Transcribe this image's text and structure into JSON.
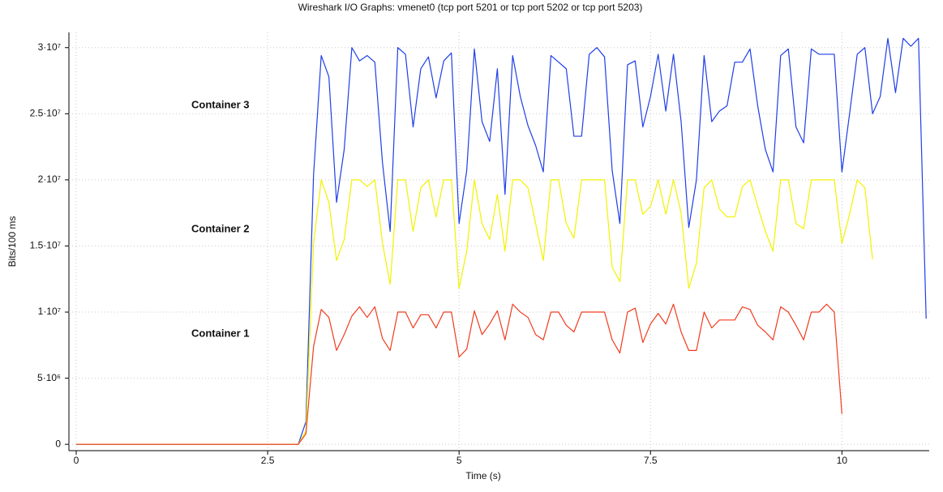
{
  "chart_data": {
    "type": "line",
    "title": "Wireshark I/O Graphs: vmenet0 (tcp port 5201 or tcp port 5202 or tcp port 5203)",
    "x_label": "Time (s)",
    "y_label": "Bits/100 ms",
    "xlim": [
      -0.095,
      11.14
    ],
    "ylim": [
      -480000,
      31150000
    ],
    "xticks": [
      0,
      2.5,
      5,
      7.5,
      10
    ],
    "yticks": [
      0,
      {
        "value": 5000000,
        "label": "5·10⁶"
      },
      {
        "value": 10000000,
        "label": "1·10⁷"
      },
      {
        "value": 15000000,
        "label": "1.5·10⁷"
      },
      {
        "value": 20000000,
        "label": "2·10⁷"
      },
      {
        "value": 25000000,
        "label": "2.5·10⁷"
      },
      {
        "value": 30000000,
        "label": "3·10⁷"
      }
    ],
    "grid": true,
    "x": [
      0,
      2.9,
      3.0,
      3.1,
      3.2,
      3.3,
      3.4,
      3.5,
      3.6,
      3.7,
      3.8,
      3.9,
      4.0,
      4.1,
      4.2,
      4.3,
      4.4,
      4.5,
      4.6,
      4.7,
      4.8,
      4.9,
      5.0,
      5.1,
      5.2,
      5.3,
      5.4,
      5.5,
      5.6,
      5.7,
      5.8,
      5.9,
      6.0,
      6.1,
      6.2,
      6.3,
      6.4,
      6.5,
      6.6,
      6.7,
      6.8,
      6.9,
      7.0,
      7.1,
      7.2,
      7.3,
      7.4,
      7.5,
      7.6,
      7.7,
      7.8,
      7.9,
      8.0,
      8.1,
      8.2,
      8.3,
      8.4,
      8.5,
      8.6,
      8.7,
      8.8,
      8.9,
      9.0,
      9.1,
      9.2,
      9.3,
      9.4,
      9.5,
      9.6,
      9.7,
      9.8,
      9.9,
      10.0,
      10.1,
      10.2,
      10.3,
      10.4,
      10.5,
      10.6,
      10.7,
      10.8,
      10.9,
      11.0,
      11.1
    ],
    "series": [
      {
        "name": "Container 3",
        "color": "#1f3fe6",
        "label_color": "#4a90e8",
        "values": [
          0,
          0,
          1700000.0,
          20400000.0,
          29400000.0,
          27800000.0,
          18300000.0,
          22300000.0,
          30000000.0,
          29000000.0,
          29400000.0,
          28900000.0,
          21300000.0,
          16100000.0,
          30000000.0,
          29500000.0,
          24000000.0,
          28400000.0,
          29300000.0,
          26200000.0,
          29000000.0,
          29600000.0,
          16700000.0,
          20700000.0,
          29900000.0,
          24400000.0,
          22900000.0,
          28400000.0,
          18900000.0,
          29400000.0,
          26300000.0,
          24100000.0,
          22600000.0,
          20600000.0,
          29400000.0,
          28900000.0,
          28400000.0,
          23300000.0,
          23300000.0,
          29500000.0,
          30000000.0,
          29300000.0,
          20700000.0,
          16700000.0,
          28700000.0,
          29000000.0,
          24000000.0,
          26300000.0,
          29500000.0,
          25200000.0,
          29500000.0,
          24400000.0,
          16400000.0,
          20000000.0,
          29400000.0,
          24400000.0,
          25200000.0,
          25600000.0,
          28900000.0,
          28900000.0,
          29900000.0,
          25600000.0,
          22300000.0,
          20600000.0,
          29400000.0,
          29900000.0,
          24000000.0,
          22800000.0,
          29900000.0,
          29500000.0,
          29500000.0,
          29500000.0,
          20600000.0,
          25000000.0,
          29500000.0,
          30000000.0,
          25000000.0,
          26300000.0,
          30700000.0,
          26600000.0,
          30700000.0,
          30100000.0,
          30700000.0,
          9500000.0
        ]
      },
      {
        "name": "Container 2",
        "color": "#f2f200",
        "label_color": "#c8c800",
        "values": [
          0,
          0,
          1000000.0,
          15200000.0,
          20000000.0,
          18300000.0,
          13900000.0,
          15500000.0,
          20000000.0,
          20000000.0,
          19500000.0,
          20000000.0,
          15200000.0,
          12100000.0,
          20000000.0,
          20000000.0,
          16100000.0,
          19400000.0,
          20000000.0,
          17200000.0,
          20000000.0,
          20000000.0,
          11800000.0,
          14600000.0,
          20000000.0,
          16700000.0,
          15500000.0,
          18900000.0,
          14600000.0,
          20000000.0,
          20000000.0,
          19400000.0,
          16700000.0,
          13900000.0,
          20000000.0,
          20000000.0,
          16700000.0,
          15600000.0,
          20000000.0,
          20000000.0,
          20000000.0,
          20000000.0,
          13400000.0,
          12300000.0,
          20000000.0,
          20000000.0,
          17400000.0,
          18000000.0,
          20000000.0,
          17400000.0,
          20000000.0,
          17500000.0,
          11800000.0,
          13700000.0,
          19400000.0,
          20000000.0,
          17800000.0,
          17200000.0,
          17200000.0,
          19500000.0,
          20000000.0,
          18000000.0,
          16100000.0,
          14600000.0,
          20000000.0,
          20000000.0,
          16700000.0,
          16300000.0,
          20000000.0,
          20000000.0,
          20000000.0,
          20000000.0,
          15200000.0,
          17400000.0,
          20000000.0,
          19400000.0,
          14000000.0,
          null,
          null,
          null,
          null,
          null,
          null,
          null
        ]
      },
      {
        "name": "Container 1",
        "color": "#f03c1e",
        "label_color": "#f03c1e",
        "values": [
          0,
          0,
          800000.0,
          7400000.0,
          10200000.0,
          9600000.0,
          7100000.0,
          8300000.0,
          9700000.0,
          10400000.0,
          9600000.0,
          10400000.0,
          8000000.0,
          7100000.0,
          10000000.0,
          10000000.0,
          8800000.0,
          9800000.0,
          9800000.0,
          8800000.0,
          10000000.0,
          10000000.0,
          6600000.0,
          7200000.0,
          10100000.0,
          8300000.0,
          9100000.0,
          10100000.0,
          7900000.0,
          10600000.0,
          10000000.0,
          9600000.0,
          8300000.0,
          7900000.0,
          10000000.0,
          10000000.0,
          9000000.0,
          8500000.0,
          10000000.0,
          10000000.0,
          10000000.0,
          10000000.0,
          7900000.0,
          6900000.0,
          10000000.0,
          10300000.0,
          7700000.0,
          9100000.0,
          9900000.0,
          9100000.0,
          10600000.0,
          8500000.0,
          7100000.0,
          7100000.0,
          10000000.0,
          8800000.0,
          9400000.0,
          9400000.0,
          9400000.0,
          10400000.0,
          10200000.0,
          9000000.0,
          8500000.0,
          7900000.0,
          10400000.0,
          10000000.0,
          9000000.0,
          7900000.0,
          10000000.0,
          10000000.0,
          10600000.0,
          10000000.0,
          2300000.0,
          null,
          null,
          null,
          null,
          null,
          null,
          null,
          null,
          null,
          null,
          null
        ]
      }
    ]
  }
}
